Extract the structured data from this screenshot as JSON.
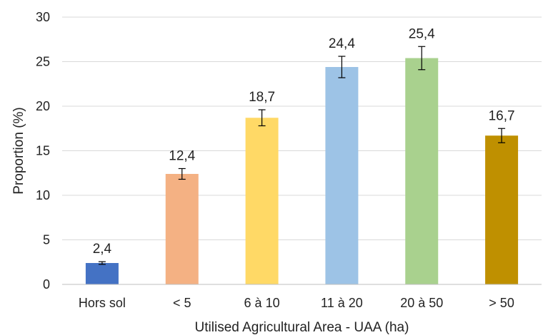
{
  "chart_data": {
    "type": "bar",
    "title": "",
    "xlabel": "Utilised Agricultural Area - UAA (ha)",
    "ylabel": "Proportion (%)",
    "ylim": [
      0,
      30
    ],
    "yticks": [
      0,
      5,
      10,
      15,
      20,
      25,
      30
    ],
    "ytick_labels": [
      "0",
      "5",
      "10",
      "15",
      "20",
      "25",
      "30"
    ],
    "grid": "horizontal",
    "legend": "none",
    "categories": [
      "Hors sol",
      "< 5",
      "6 à 10",
      "11 à 20",
      "20 à 50",
      "> 50"
    ],
    "values": [
      2.4,
      12.4,
      18.7,
      24.4,
      25.4,
      16.7
    ],
    "data_labels": [
      "2,4",
      "12,4",
      "18,7",
      "24,4",
      "25,4",
      "16,7"
    ],
    "error_bars": [
      0.15,
      0.6,
      0.9,
      1.2,
      1.3,
      0.8
    ],
    "colors": [
      "#4472c4",
      "#f4b183",
      "#ffd966",
      "#9dc3e6",
      "#a9d18e",
      "#bf9000"
    ]
  }
}
